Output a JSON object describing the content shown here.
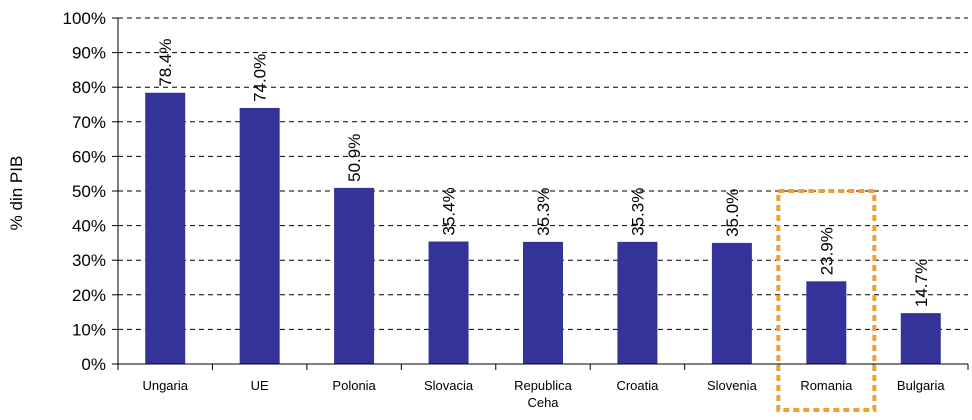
{
  "chart_data": {
    "type": "bar",
    "title": "",
    "xlabel": "",
    "ylabel": "% din PIB",
    "ylim": [
      0,
      100
    ],
    "yticks": [
      "0%",
      "10%",
      "20%",
      "30%",
      "40%",
      "50%",
      "60%",
      "70%",
      "80%",
      "90%",
      "100%"
    ],
    "grid": "horizontal dashed",
    "categories": [
      "Ungaria",
      "UE",
      "Polonia",
      "Slovacia",
      "Republica Ceha",
      "Croatia",
      "Slovenia",
      "Romania",
      "Bulgaria"
    ],
    "values": [
      78.4,
      74.0,
      50.9,
      35.4,
      35.3,
      35.3,
      35.0,
      23.9,
      14.7
    ],
    "data_labels": [
      "78.4%",
      "74.0%",
      "50.9%",
      "35.4%",
      "35.3%",
      "35.3%",
      "35.0%",
      "23.9%",
      "14.7%"
    ],
    "highlighted_category": "Romania",
    "colors": {
      "bar": "#333399",
      "highlight_box": "#F0A030",
      "grid": "#000000",
      "axis": "#000000"
    }
  }
}
